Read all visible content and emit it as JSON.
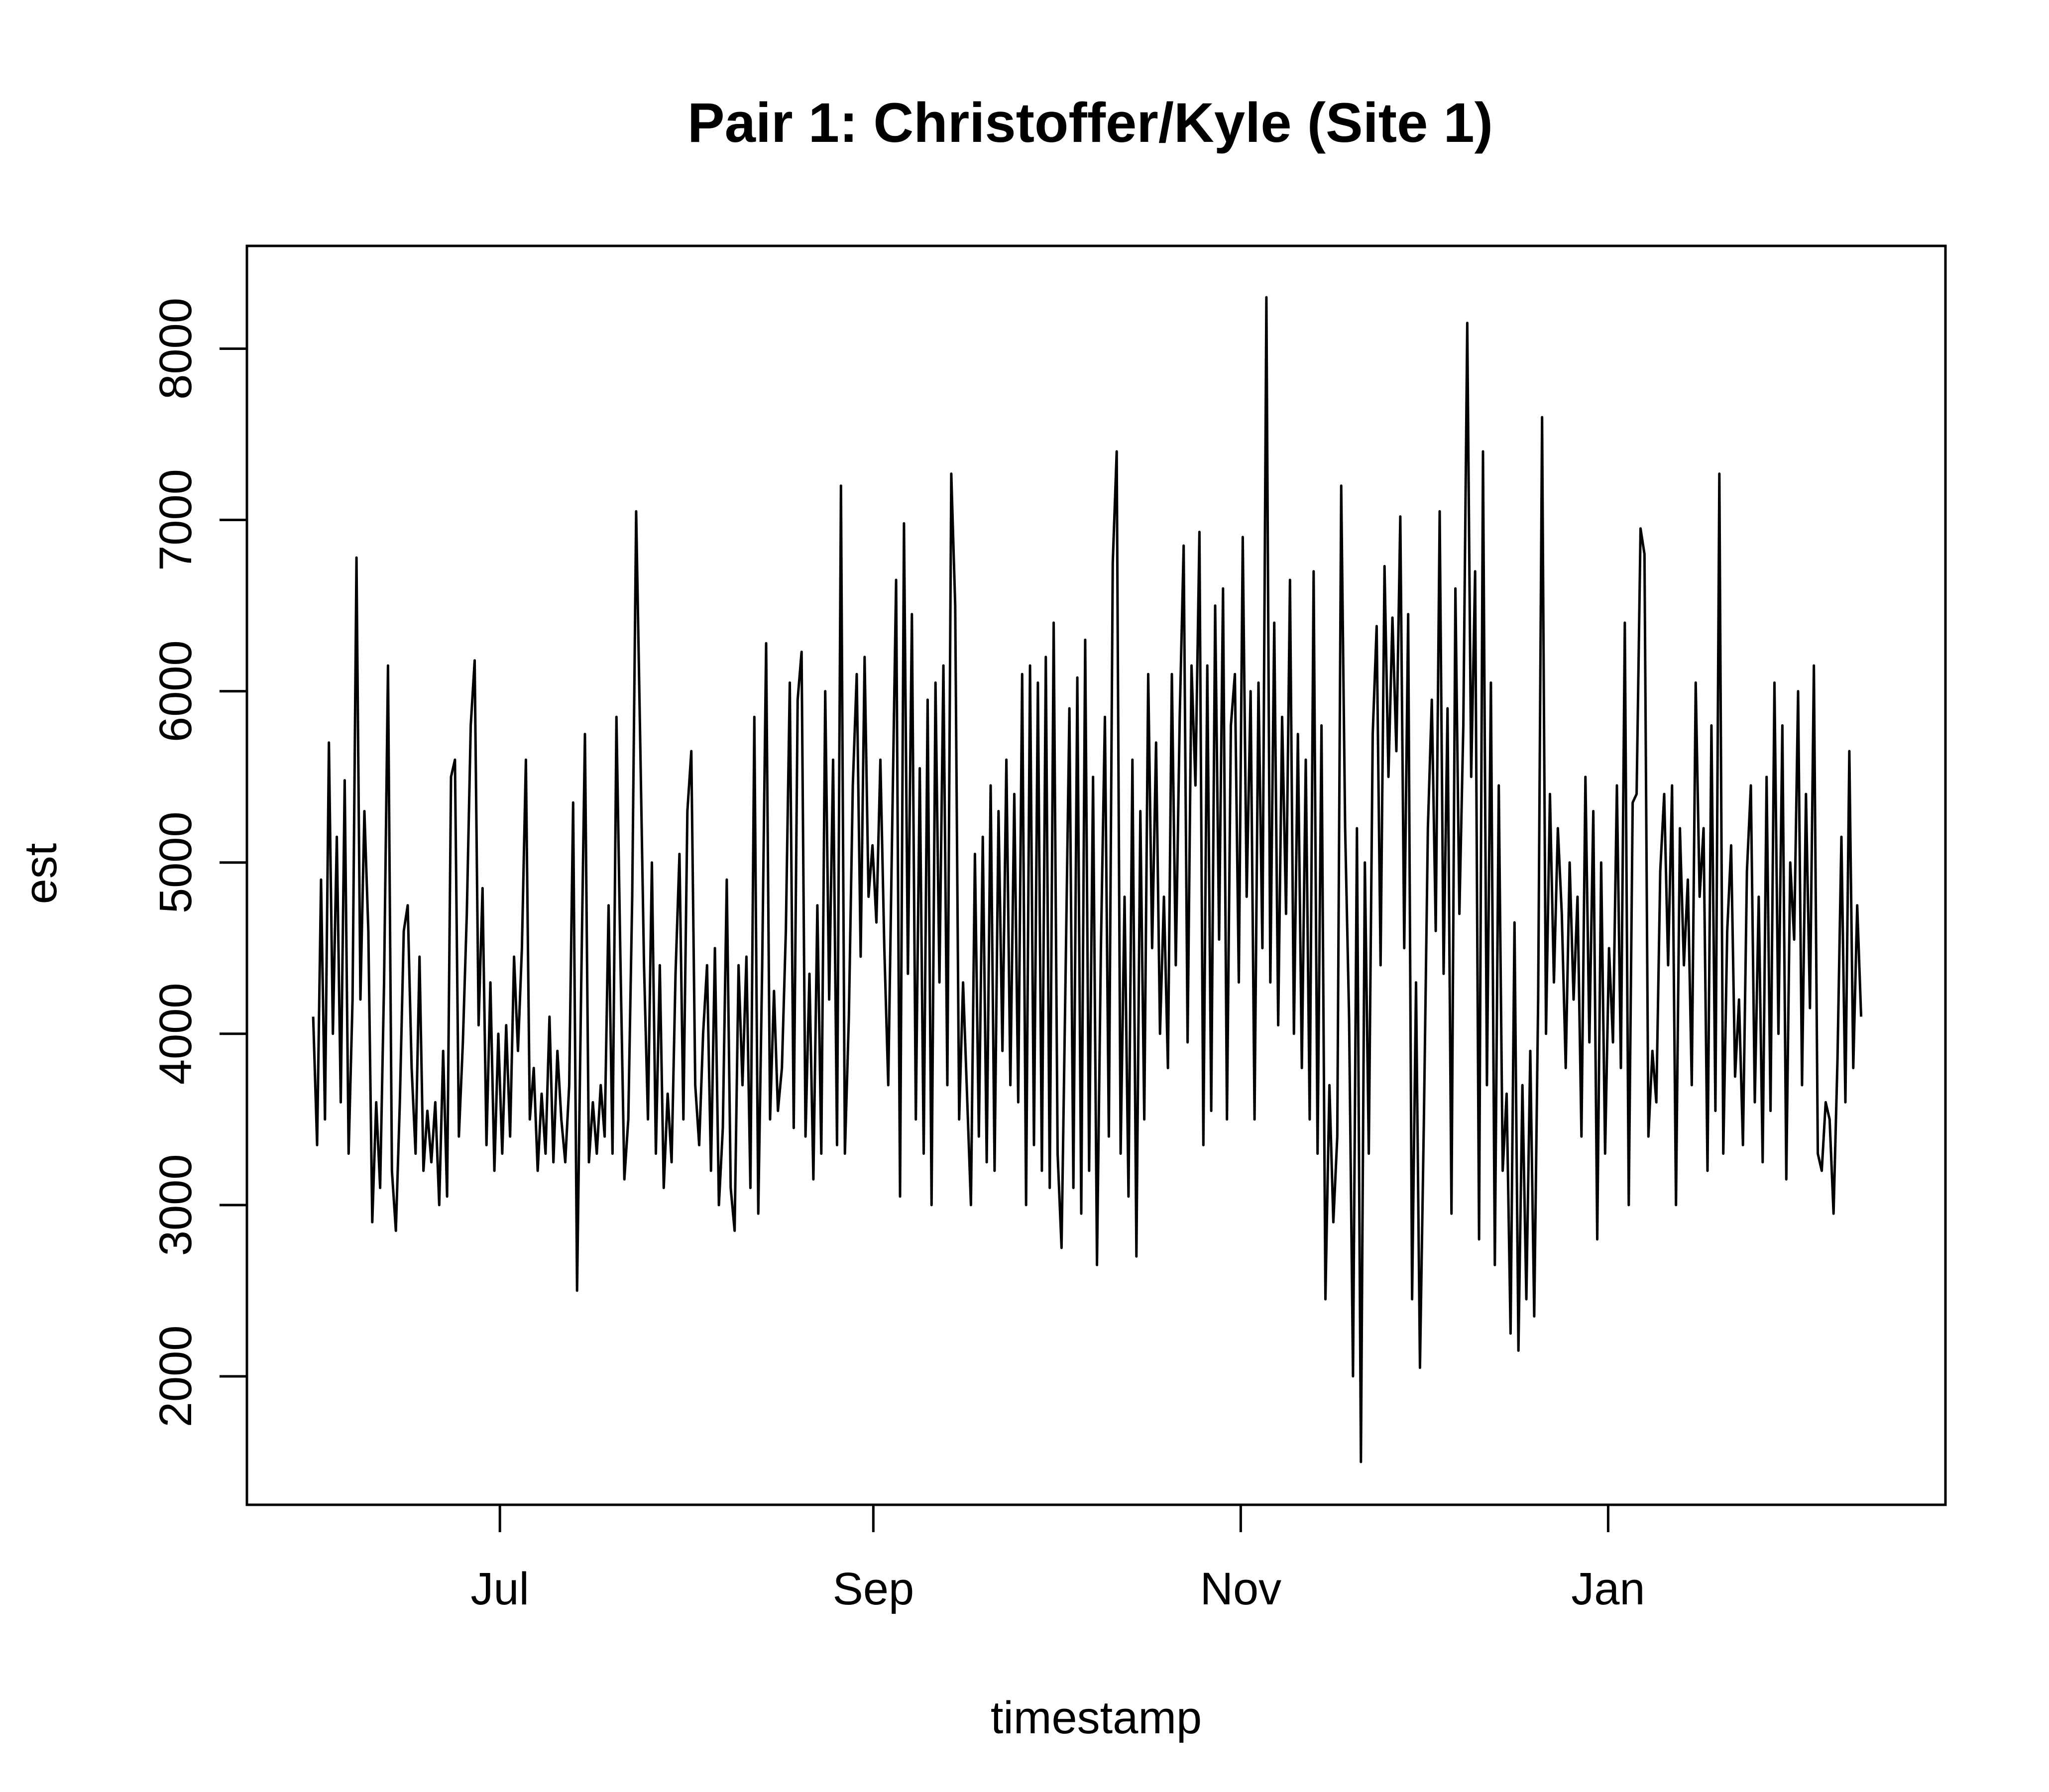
{
  "chart_data": {
    "type": "line",
    "title": "Pair 1: Christoffer/Kyle (Site 1)",
    "xlabel": "timestamp",
    "ylabel": "est",
    "xlim": [
      "2023-05-20",
      "2024-02-26"
    ],
    "ylim": [
      1250,
      8600
    ],
    "grid": false,
    "legend": "none",
    "x_ticks": [
      {
        "label": "Jul",
        "date": "2023-07-01"
      },
      {
        "label": "Sep",
        "date": "2023-09-01"
      },
      {
        "label": "Nov",
        "date": "2023-11-01"
      },
      {
        "label": "Jan",
        "date": "2024-01-01"
      }
    ],
    "y_ticks": [
      2000,
      3000,
      4000,
      5000,
      6000,
      7000,
      8000
    ],
    "colors": {
      "series": "#000000",
      "axis": "#000000",
      "background": "#ffffff"
    },
    "series": [
      {
        "x_start": "2023-05-31",
        "x_end": "2024-02-12",
        "values": [
          4100,
          3350,
          4900,
          3500,
          5700,
          4000,
          5150,
          3600,
          5480,
          3300,
          4200,
          6780,
          4200,
          5300,
          4600,
          2900,
          3600,
          3100,
          4300,
          6150,
          3200,
          2850,
          3600,
          4600,
          4750,
          3800,
          3300,
          4450,
          3200,
          3550,
          3250,
          3600,
          3000,
          3900,
          3050,
          5500,
          5600,
          3400,
          3950,
          4700,
          5800,
          6180,
          4050,
          4850,
          3350,
          4300,
          3200,
          4000,
          3300,
          4050,
          3400,
          4450,
          3900,
          4500,
          5600,
          3500,
          3800,
          3200,
          3650,
          3300,
          4100,
          3250,
          3900,
          3500,
          3250,
          3700,
          5350,
          2500,
          4200,
          5750,
          3250,
          3600,
          3300,
          3700,
          3400,
          4750,
          3300,
          5850,
          4450,
          3150,
          3500,
          4800,
          7050,
          5750,
          4400,
          3500,
          5000,
          3300,
          4400,
          3100,
          3650,
          3250,
          4350,
          5050,
          3500,
          5300,
          5650,
          3700,
          3350,
          4000,
          4400,
          3200,
          4500,
          3000,
          3450,
          4900,
          3100,
          2850,
          4400,
          3700,
          4450,
          3100,
          5850,
          2950,
          4400,
          6280,
          3500,
          4250,
          3550,
          3800,
          4600,
          6050,
          3450,
          5950,
          6230,
          3400,
          4350,
          3150,
          4750,
          3300,
          6000,
          4200,
          5600,
          3350,
          7200,
          3300,
          4100,
          5450,
          6100,
          4450,
          6200,
          4800,
          5100,
          4650,
          5600,
          4500,
          3700,
          5200,
          6650,
          3050,
          6980,
          4350,
          6450,
          3500,
          5550,
          3300,
          5950,
          3000,
          6050,
          4300,
          6150,
          3700,
          7270,
          6500,
          3500,
          4300,
          3650,
          3000,
          5050,
          3400,
          5150,
          3250,
          5450,
          3200,
          5300,
          3900,
          5600,
          3700,
          5400,
          3600,
          6100,
          3000,
          6150,
          3350,
          6050,
          3200,
          6200,
          3100,
          6400,
          3300,
          2750,
          4300,
          5900,
          3100,
          6080,
          2950,
          6300,
          3200,
          5500,
          2650,
          4500,
          5850,
          3400,
          6750,
          7400,
          3300,
          4800,
          3050,
          5600,
          2700,
          5300,
          3500,
          6100,
          4500,
          5700,
          4000,
          4800,
          3800,
          6100,
          4400,
          5850,
          6850,
          3950,
          6150,
          5450,
          6930,
          3350,
          6150,
          3550,
          6500,
          4550,
          6600,
          3500,
          5800,
          6100,
          4300,
          6900,
          4800,
          6000,
          3500,
          6050,
          4500,
          8300,
          4300,
          6400,
          4050,
          5850,
          4700,
          6650,
          4000,
          5750,
          3800,
          5600,
          3500,
          6700,
          3300,
          5800,
          2450,
          3700,
          2900,
          3400,
          7200,
          5200,
          4100,
          2000,
          5200,
          1500,
          5000,
          3300,
          5750,
          6380,
          4400,
          6730,
          5500,
          6430,
          5650,
          7020,
          4500,
          6450,
          2450,
          4300,
          2050,
          3500,
          5200,
          5950,
          4600,
          7050,
          4350,
          5900,
          2950,
          6600,
          4700,
          5800,
          8150,
          5500,
          6700,
          2800,
          7400,
          3700,
          6050,
          2650,
          5450,
          3200,
          3650,
          2250,
          4650,
          2150,
          3700,
          2450,
          3900,
          2350,
          4200,
          7600,
          4000,
          5400,
          4300,
          5200,
          4700,
          3800,
          5000,
          4200,
          4800,
          3400,
          5500,
          3950,
          5300,
          2800,
          5000,
          3300,
          4500,
          3950,
          5450,
          3800,
          6400,
          3000,
          5350,
          5400,
          6950,
          6800,
          3400,
          3900,
          3600,
          4950,
          5400,
          4400,
          5450,
          3000,
          5200,
          4400,
          4900,
          3700,
          6050,
          4800,
          5200,
          3200,
          5800,
          3550,
          7270,
          3300,
          4600,
          5100,
          3750,
          4200,
          3350,
          4950,
          5450,
          3600,
          4800,
          3250,
          5500,
          3550,
          6050,
          4000,
          5800,
          3150,
          5000,
          4550,
          6000,
          3700,
          5400,
          4150,
          6150,
          3300,
          3200,
          3600,
          3500,
          2950,
          3850,
          5150,
          3600,
          5650,
          3800,
          4750,
          4100
        ]
      }
    ]
  }
}
